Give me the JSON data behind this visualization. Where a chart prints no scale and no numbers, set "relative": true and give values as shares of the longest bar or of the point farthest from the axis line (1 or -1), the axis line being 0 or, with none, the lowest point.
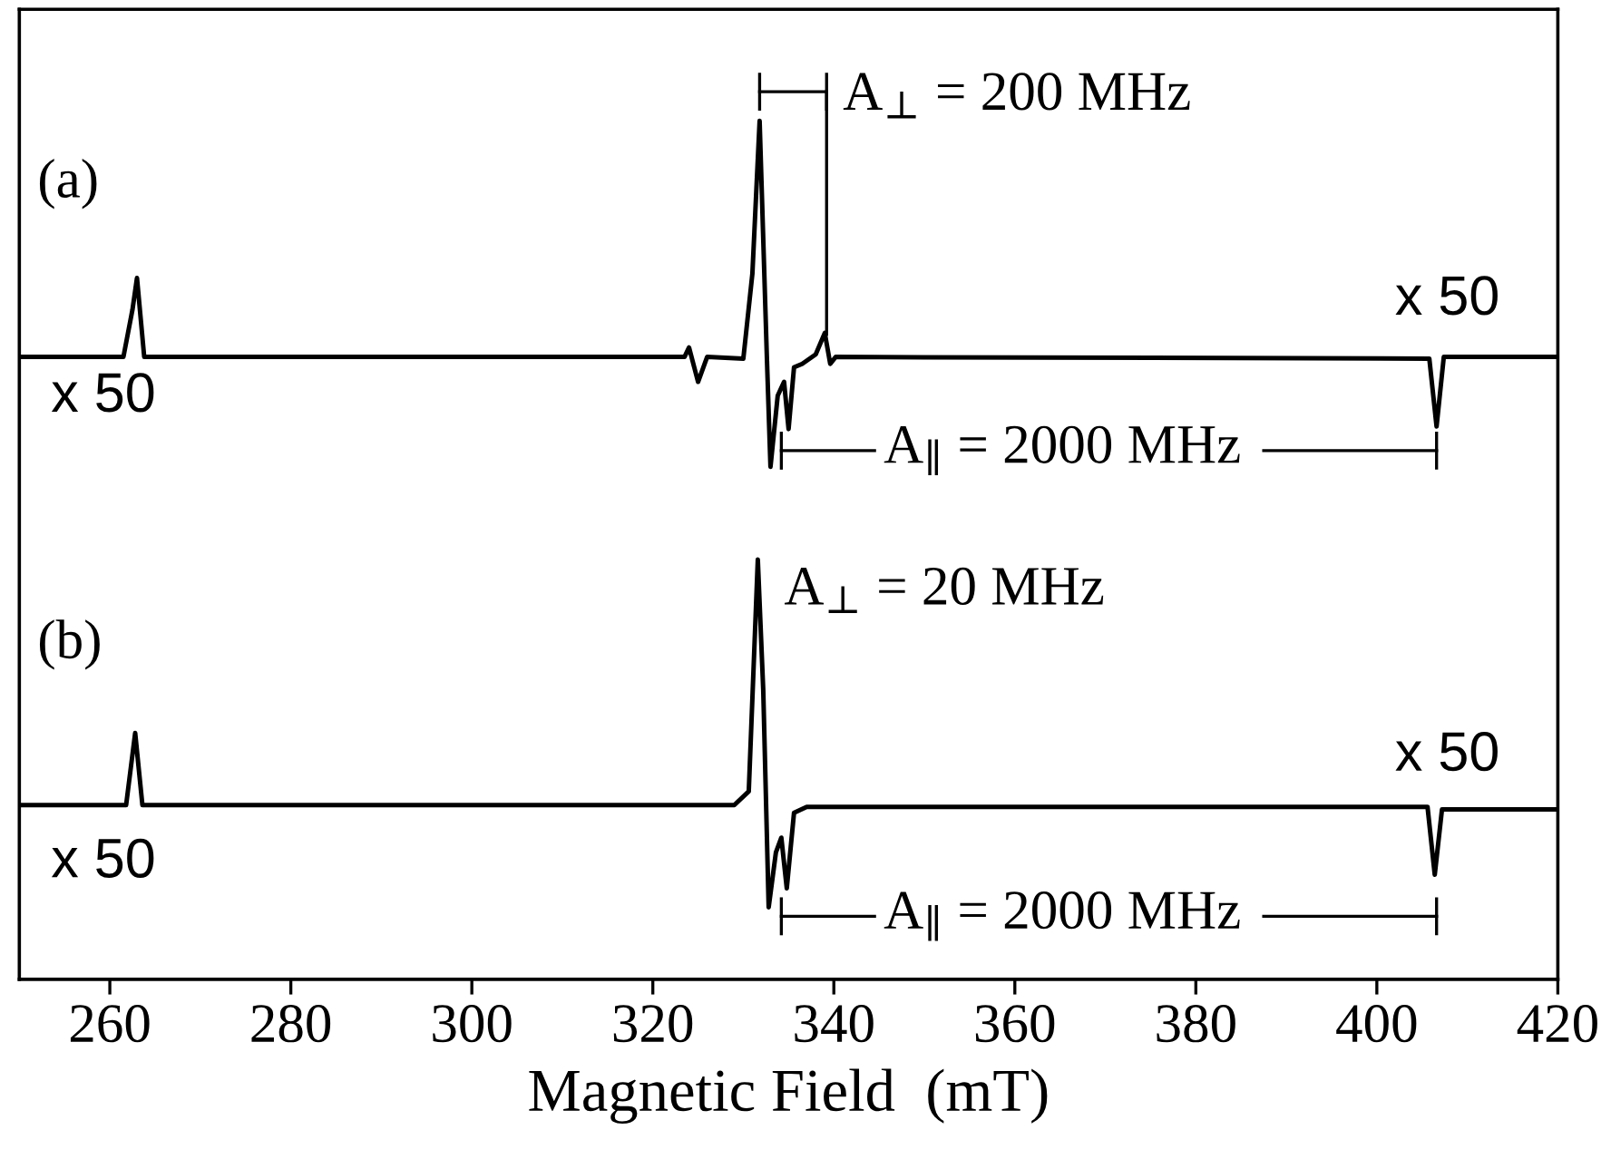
{
  "chart_data": {
    "type": "line",
    "xlabel": "Magnetic Field  (mT)",
    "relative": true,
    "tick_labels": "x",
    "xlim": [
      250,
      420
    ],
    "xticks": [
      260,
      280,
      300,
      320,
      340,
      360,
      380,
      400,
      420
    ],
    "grid": false,
    "legend": false,
    "marker": "none",
    "line_style": "solid",
    "series": [
      {
        "color": "#000000",
        "x": [
          250,
          261.5,
          262.5,
          263.0,
          263.8,
          323.5,
          324,
          325,
          326,
          330,
          331,
          331.8,
          332.6,
          333,
          333.8,
          334.5,
          335,
          335.6,
          336.5,
          338,
          339,
          339.6,
          340.2,
          405.8,
          406.6,
          407.4,
          420
        ],
        "values": [
          0.725,
          0.725,
          0.78,
          0.817,
          0.725,
          0.725,
          0.736,
          0.696,
          0.725,
          0.723,
          0.822,
          1.0,
          0.725,
          0.597,
          0.68,
          0.696,
          0.641,
          0.713,
          0.717,
          0.728,
          0.753,
          0.717,
          0.725,
          0.723,
          0.644,
          0.725,
          0.725
        ]
      },
      {
        "color": "#000000",
        "x": [
          250,
          261.8,
          262.8,
          263.6,
          329,
          330.6,
          331.6,
          332.2,
          332.8,
          333.6,
          334.2,
          334.8,
          335.6,
          337,
          405.6,
          406.4,
          407.2,
          420
        ],
        "values": [
          0.203,
          0.203,
          0.287,
          0.203,
          0.203,
          0.219,
          0.489,
          0.337,
          0.084,
          0.148,
          0.165,
          0.106,
          0.194,
          0.201,
          0.201,
          0.122,
          0.198,
          0.198
        ]
      }
    ],
    "annotations": [
      "(a)",
      "x 50",
      "x 50",
      "A$_{⊥}$ = 200 MHz",
      "A$_{∥}$ = 2000 MHz",
      "(b)",
      "x 50",
      "x 50",
      "A$_{⊥}$ = 20 MHz",
      "A$_{∥}$ = 2000 MHz"
    ]
  }
}
